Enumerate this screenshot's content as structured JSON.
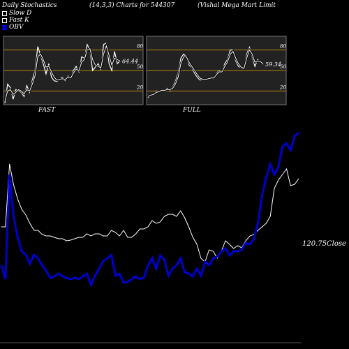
{
  "header": {
    "left": "Daily Stochastics",
    "center": "(14,3,3) Charts for 544307",
    "right": "(Vishal Mega  Mart Limit"
  },
  "legend": [
    {
      "label": "Slow  D",
      "swatch": "white-box"
    },
    {
      "label": "Fast K",
      "swatch": "white-box"
    },
    {
      "label": "OBV",
      "swatch": "blue-box",
      "color": "#0000cc"
    }
  ],
  "chart_data": [
    {
      "type": "line",
      "panel": "FAST",
      "ylim": [
        0,
        100
      ],
      "yticks": [
        "80",
        "50",
        "20"
      ],
      "reference_lines": [
        20,
        50,
        80
      ],
      "last_value_label": "64.44",
      "series": [
        {
          "name": "Fast K",
          "values": [
            2,
            30,
            25,
            8,
            22,
            20,
            18,
            12,
            28,
            18,
            36,
            50,
            85,
            72,
            60,
            45,
            60,
            40,
            35,
            34,
            38,
            40,
            35,
            42,
            38,
            50,
            56,
            48,
            70,
            68,
            88,
            80,
            50,
            55,
            60,
            52,
            88,
            90,
            60,
            50,
            78,
            60,
            64
          ]
        },
        {
          "name": "Slow  D",
          "values": [
            5,
            20,
            22,
            15,
            18,
            22,
            20,
            16,
            22,
            20,
            30,
            42,
            70,
            74,
            66,
            55,
            56,
            48,
            40,
            36,
            37,
            38,
            37,
            40,
            39,
            46,
            52,
            50,
            62,
            66,
            80,
            82,
            66,
            58,
            56,
            54,
            74,
            86,
            72,
            58,
            68,
            66,
            64
          ]
        }
      ]
    },
    {
      "type": "line",
      "panel": "FULL",
      "ylim": [
        0,
        100
      ],
      "yticks": [
        "80",
        "50",
        "20"
      ],
      "reference_lines": [
        20,
        50,
        80
      ],
      "last_value_label": "59.34",
      "series": [
        {
          "name": "Fast K",
          "values": [
            10,
            15,
            14,
            20,
            18,
            22,
            20,
            24,
            20,
            26,
            34,
            46,
            68,
            74,
            70,
            58,
            54,
            46,
            40,
            36,
            37,
            38,
            37,
            40,
            38,
            46,
            50,
            48,
            60,
            66,
            80,
            80,
            64,
            56,
            54,
            52,
            74,
            84,
            70,
            56,
            66,
            62,
            59
          ]
        },
        {
          "name": "Slow  D",
          "values": [
            12,
            14,
            15,
            18,
            19,
            21,
            21,
            22,
            22,
            24,
            30,
            40,
            60,
            70,
            70,
            62,
            56,
            50,
            44,
            39,
            37,
            37,
            38,
            39,
            39,
            44,
            48,
            48,
            56,
            62,
            74,
            78,
            68,
            60,
            55,
            53,
            68,
            80,
            74,
            62,
            64,
            63,
            60
          ]
        }
      ]
    },
    {
      "type": "line",
      "panel": "price-obv",
      "close_label": "120.75",
      "close_suffix": "Close",
      "series": [
        {
          "name": "Close",
          "color": "#ffffff",
          "values": [
            165,
            165,
            75,
            105,
            125,
            140,
            148,
            160,
            170,
            170,
            176,
            178,
            178,
            180,
            182,
            182,
            185,
            184,
            182,
            180,
            180,
            175,
            178,
            175,
            175,
            178,
            178,
            170,
            173,
            178,
            170,
            180,
            180,
            175,
            168,
            168,
            165,
            156,
            160,
            158,
            150,
            147,
            147,
            150,
            142,
            152,
            165,
            180,
            190,
            210,
            215,
            198,
            200,
            210,
            200,
            185,
            190,
            196,
            192,
            195,
            185,
            178,
            176,
            170,
            165,
            160,
            150,
            110,
            98,
            90,
            82,
            106,
            104,
            96
          ]
        },
        {
          "name": "OBV",
          "color": "#0000cc",
          "values": [
            220,
            240,
            90,
            150,
            180,
            200,
            205,
            218,
            205,
            210,
            220,
            228,
            238,
            236,
            232,
            236,
            238,
            240,
            238,
            240,
            236,
            232,
            248,
            235,
            225,
            214,
            210,
            205,
            235,
            232,
            245,
            244,
            240,
            236,
            240,
            238,
            220,
            210,
            225,
            206,
            212,
            235,
            225,
            220,
            210,
            230,
            232,
            236,
            225,
            235,
            215,
            220,
            210,
            208,
            200,
            196,
            206,
            200,
            200,
            198,
            188,
            190,
            182,
            160,
            120,
            95,
            75,
            90,
            80,
            50,
            45,
            55,
            35,
            30
          ]
        }
      ]
    }
  ],
  "panel_labels": {
    "fast": "FAST",
    "full": "FULL"
  }
}
